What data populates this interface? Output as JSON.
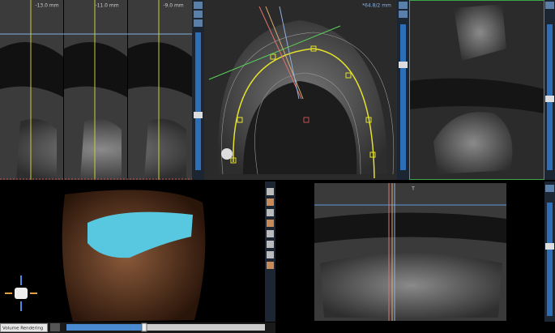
{
  "cross_sections": [
    {
      "label": "-13.0 mm"
    },
    {
      "label": "-11.0 mm"
    },
    {
      "label": "-9.0 mm"
    }
  ],
  "axial": {
    "label": "*64.8/2 mm"
  },
  "panoramic": {
    "marker": "T"
  },
  "volume": {
    "mode": "Volume Rendering"
  }
}
